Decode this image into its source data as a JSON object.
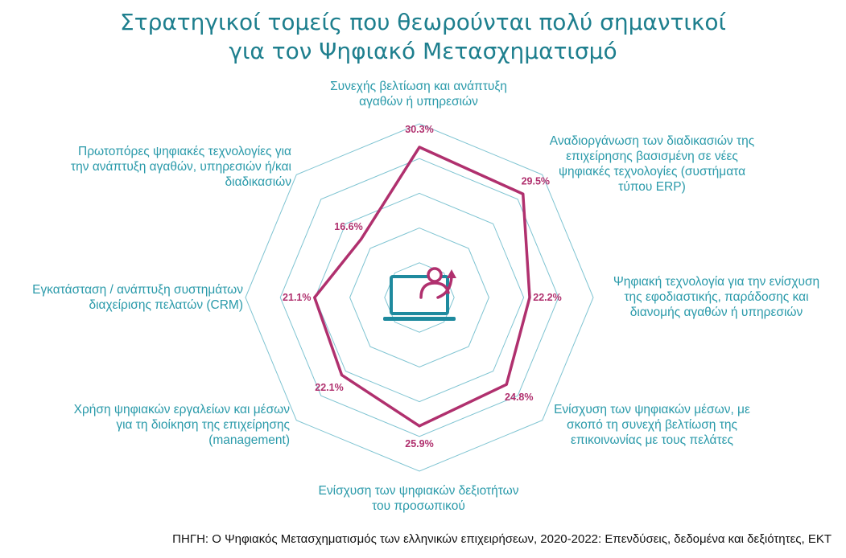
{
  "title": {
    "line1": "Στρατηγικοί τομείς που θεωρούνται πολύ σημαντικοί",
    "line2": "για τον Ψηφιακό Μετασχηματισμό"
  },
  "source": "ΠΗΓΗ: Ο Ψηφιακός Μετασχηματισμός των ελληνικών επιχειρήσεων, 2020-2022: Επενδύσεις, δεδομένα και δεξιότητες, ΕΚΤ",
  "colors": {
    "title": "#1e7f8e",
    "category_text": "#2a9aaa",
    "series": "#b0306e",
    "grid": "#7fc4d2",
    "icon_teal": "#1e8a9e",
    "icon_magenta": "#b0306e"
  },
  "center_icon": "laptop-user-growth-icon",
  "chart_data": {
    "type": "radar",
    "max": 35,
    "rings": 5,
    "grid": true,
    "categories": [
      {
        "lines": [
          "Συνεχής βελτίωση και ανάπτυξη",
          "αγαθών ή υπηρεσιών"
        ]
      },
      {
        "lines": [
          "Αναδιοργάνωση των διαδικασιών της",
          "επιχείρησης βασισμένη σε νέες",
          "ψηφιακές τεχνολογίες (συστήματα",
          "τύπου ERP)"
        ]
      },
      {
        "lines": [
          "Ψηφιακή τεχνολογία για την ενίσχυση",
          "της εφοδιαστικής, παράδοσης και",
          "διανομής αγαθών ή υπηρεσιών"
        ]
      },
      {
        "lines": [
          "Ενίσχυση των ψηφιακών μέσων, με",
          "σκοπό τη συνεχή βελτίωση της",
          "επικοινωνίας με τους πελάτες"
        ]
      },
      {
        "lines": [
          "Ενίσχυση των ψηφιακών δεξιοτήτων",
          "του προσωπικού"
        ]
      },
      {
        "lines": [
          "Χρήση ψηφιακών εργαλείων και μέσων",
          "για τη διοίκηση της επιχείρησης",
          "(management)"
        ]
      },
      {
        "lines": [
          "Εγκατάσταση / ανάπτυξη συστημάτων",
          "διαχείρισης πελατών (CRM)"
        ]
      },
      {
        "lines": [
          "Πρωτοπόρες ψηφιακές τεχνολογίες για",
          "την ανάπτυξη αγαθών, υπηρεσιών ή/και",
          "διαδικασιών"
        ]
      }
    ],
    "values": [
      30.3,
      29.5,
      22.2,
      24.8,
      25.9,
      22.1,
      21.1,
      16.6
    ],
    "value_labels": [
      "30.3%",
      "29.5%",
      "22.2%",
      "24.8%",
      "25.9%",
      "22.1%",
      "21.1%",
      "16.6%"
    ]
  }
}
